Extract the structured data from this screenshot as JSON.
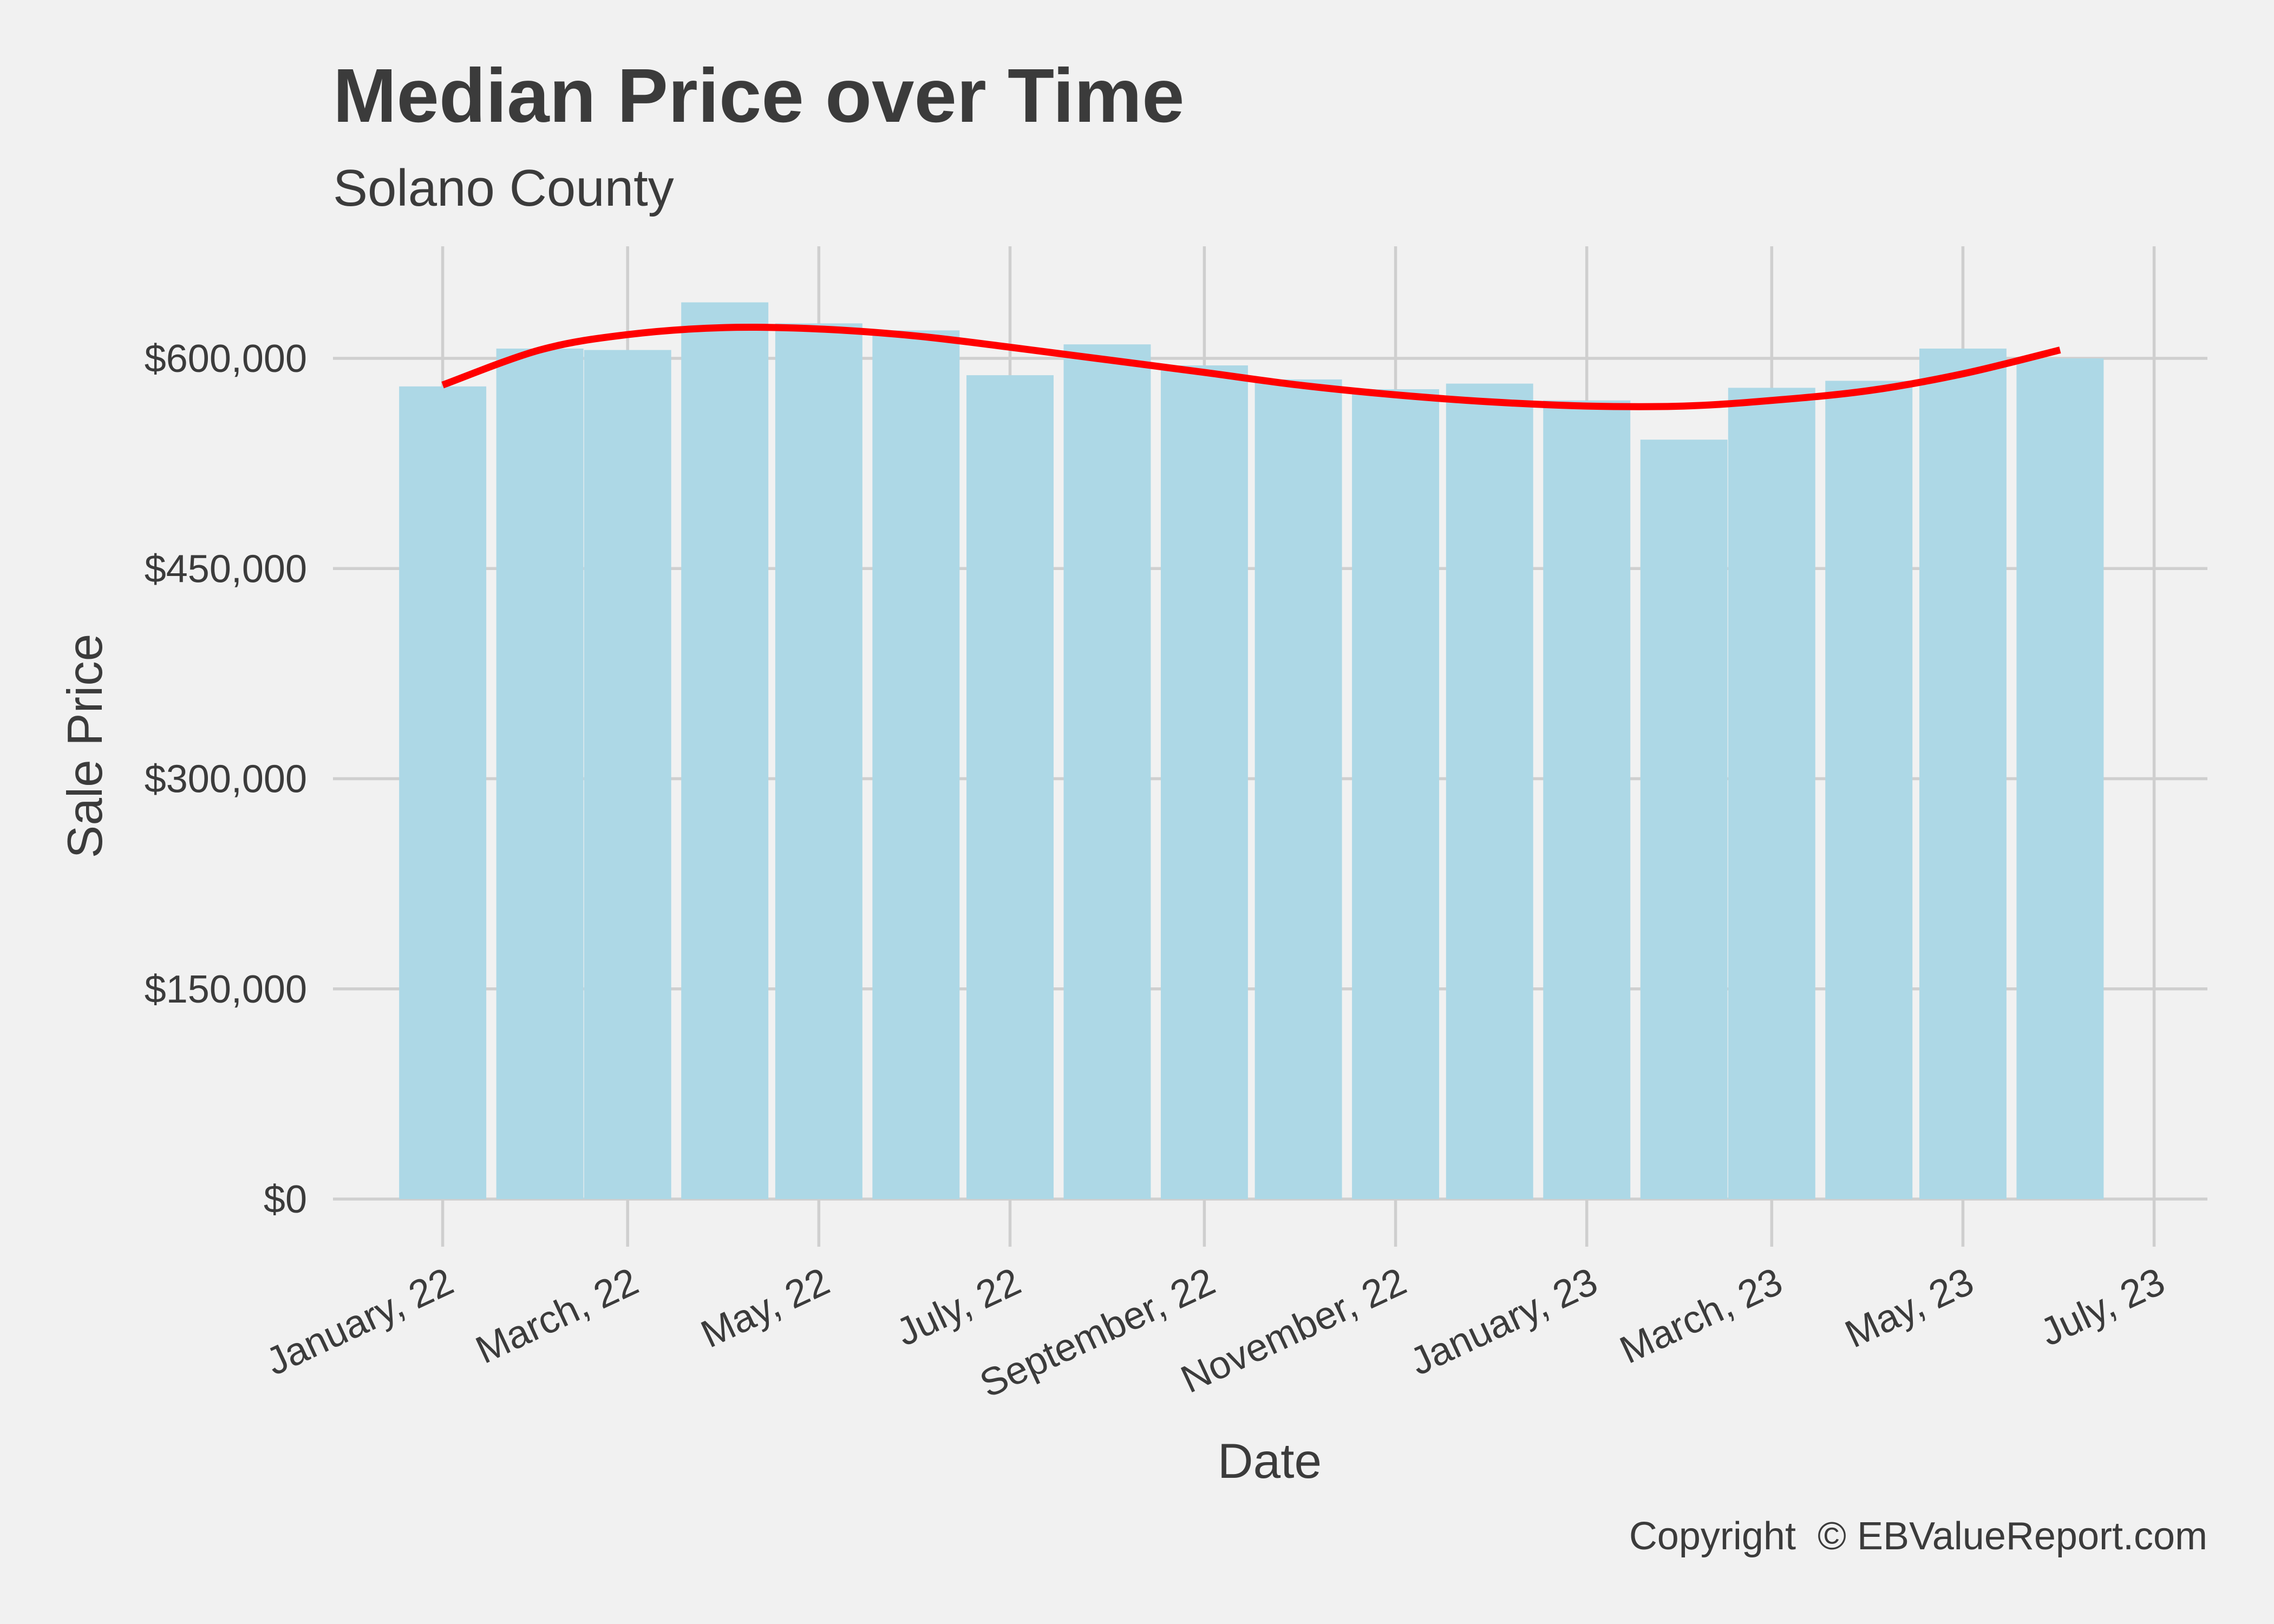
{
  "chart_data": {
    "type": "bar",
    "title": "Median Price over Time",
    "subtitle": "Solano County",
    "xlabel": "Date",
    "ylabel": "Sale Price",
    "caption": "Copyright  © EBValueReport.com",
    "ylim": [
      0,
      680000
    ],
    "xlim": [
      "2021-11-27",
      "2023-07-18"
    ],
    "y_ticks": [
      0,
      150000,
      300000,
      450000,
      600000
    ],
    "y_tick_labels": [
      "$0",
      "$150,000",
      "$300,000",
      "$450,000",
      "$600,000"
    ],
    "x_ticks": [
      "2022-01-01",
      "2022-03-01",
      "2022-05-01",
      "2022-07-01",
      "2022-09-01",
      "2022-11-01",
      "2023-01-01",
      "2023-03-01",
      "2023-05-01",
      "2023-07-01"
    ],
    "x_tick_labels": [
      "January, 22",
      "March, 22",
      "May, 22",
      "July, 22",
      "September, 22",
      "November, 22",
      "January, 23",
      "March, 23",
      "May, 23",
      "July, 23"
    ],
    "grid": true,
    "legend": "none",
    "bar_color": "#add8e6",
    "series": [
      {
        "type": "bar",
        "x": [
          "2022-01-01",
          "2022-02-01",
          "2022-03-01",
          "2022-04-01",
          "2022-05-01",
          "2022-06-01",
          "2022-07-01",
          "2022-08-01",
          "2022-09-01",
          "2022-10-01",
          "2022-11-01",
          "2022-12-01",
          "2023-01-01",
          "2023-02-01",
          "2023-03-01",
          "2023-04-01",
          "2023-05-01",
          "2023-06-01"
        ],
        "values": [
          580000,
          607000,
          606000,
          640000,
          625000,
          620000,
          588000,
          610000,
          595000,
          585000,
          578000,
          582000,
          570000,
          542000,
          579000,
          584000,
          607000,
          600000
        ]
      },
      {
        "type": "line",
        "color": "#ff0000",
        "x": [
          "2022-01-01",
          "2022-02-01",
          "2022-03-01",
          "2022-04-01",
          "2022-05-01",
          "2022-06-01",
          "2022-07-01",
          "2022-08-01",
          "2022-09-01",
          "2022-10-01",
          "2022-11-01",
          "2022-12-01",
          "2023-01-01",
          "2023-02-01",
          "2023-03-01",
          "2023-04-01",
          "2023-05-01",
          "2023-06-01"
        ],
        "values": [
          581000,
          606000,
          617000,
          622000,
          621000,
          616000,
          608000,
          599000,
          590000,
          581000,
          574000,
          569000,
          566000,
          566000,
          570000,
          577000,
          589000,
          606000
        ]
      }
    ]
  }
}
